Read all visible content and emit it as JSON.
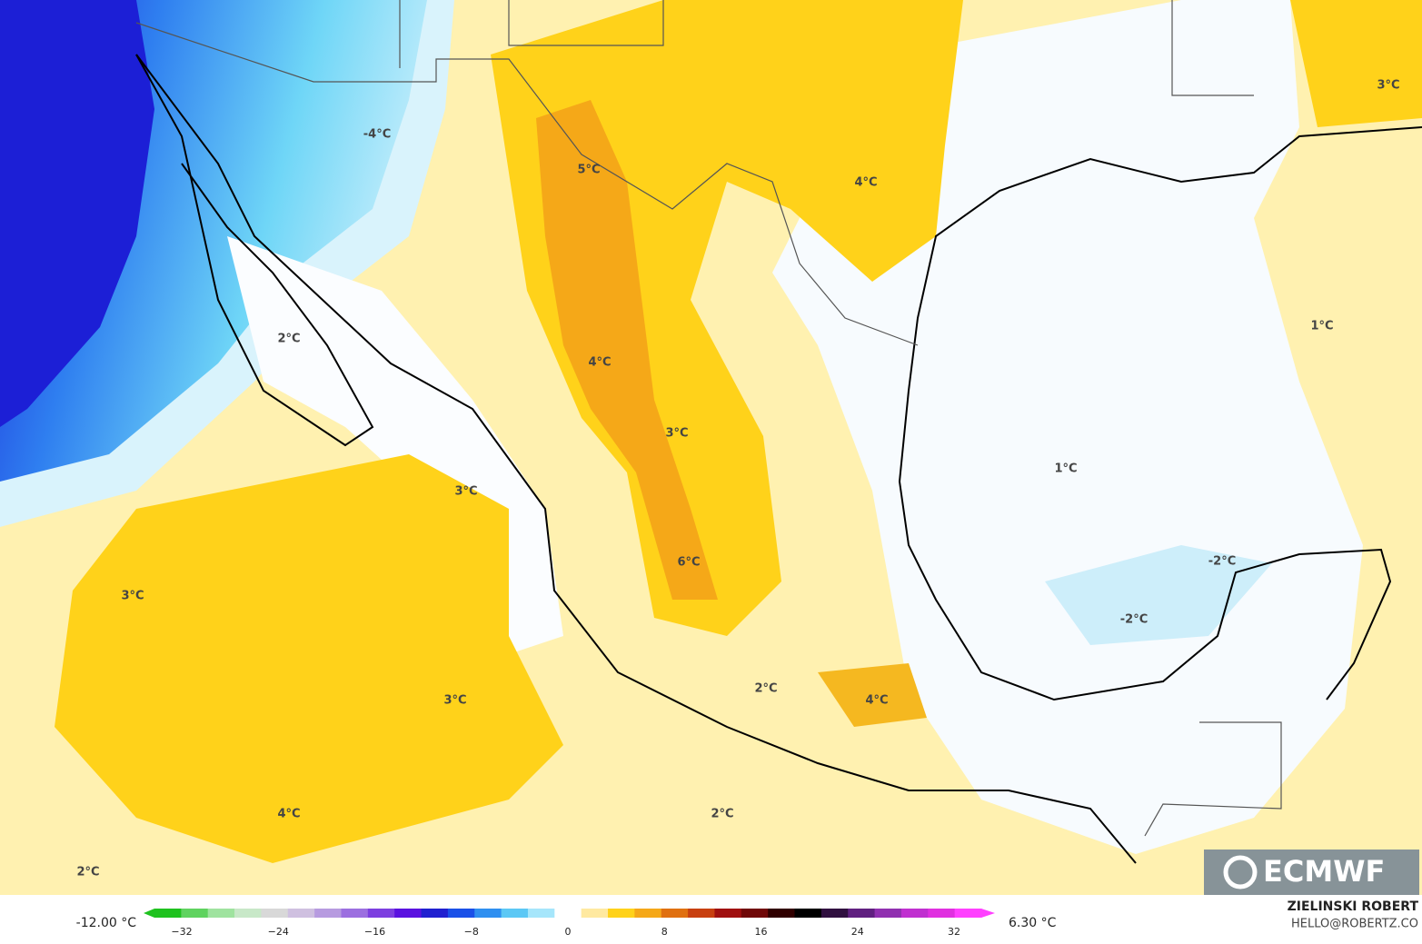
{
  "map": {
    "contour_labels": [
      "-4°C",
      "5°C",
      "4°C",
      "3°C",
      "1°C",
      "2°C",
      "4°C",
      "3°C",
      "1°C",
      "3°C",
      "-2°C",
      "6°C",
      "3°C",
      "-2°C",
      "3°C",
      "2°C",
      "4°C",
      "4°C",
      "2°C",
      "2°C"
    ],
    "logo": "ECMWF"
  },
  "colorbar": {
    "min_label": "-12.00 °C",
    "max_label": "6.30 °C",
    "ticks": [
      "−32",
      "−24",
      "−16",
      "−8",
      "0",
      "8",
      "16",
      "24",
      "32"
    ]
  },
  "credit": {
    "name": "ZIELINSKI ROBERT",
    "contact": "HELLO@ROBERTZ.CO"
  }
}
